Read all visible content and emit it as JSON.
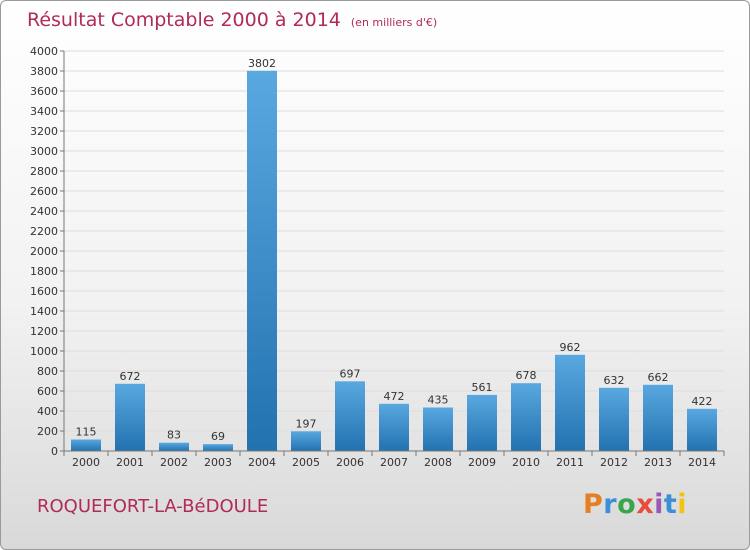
{
  "header": {
    "title": "Résultat Comptable 2000 à 2014",
    "unit": "(en milliers d'€)"
  },
  "footer": {
    "commune": "ROQUEFORT-LA-BéDOULE",
    "logo_letters": [
      "P",
      "r",
      "o",
      "x",
      "i",
      "t",
      "i"
    ],
    "logo_colors": [
      "#e67e22",
      "#3a8fd6",
      "#3aa64c",
      "#e74c3c",
      "#9b59b6",
      "#3a8fd6",
      "#f1c40f"
    ]
  },
  "chart_data": {
    "type": "bar",
    "title": "Résultat Comptable 2000 à 2014",
    "ylabel": "",
    "xlabel": "",
    "ylim": [
      0,
      4000
    ],
    "ytick_step": 200,
    "categories": [
      "2000",
      "2001",
      "2002",
      "2003",
      "2004",
      "2005",
      "2006",
      "2007",
      "2008",
      "2009",
      "2010",
      "2011",
      "2012",
      "2013",
      "2014"
    ],
    "values": [
      115,
      672,
      83,
      69,
      3802,
      197,
      697,
      472,
      435,
      561,
      678,
      962,
      632,
      662,
      422
    ],
    "bar_color_top": "#5aa8e0",
    "bar_color_bottom": "#2272b0"
  }
}
